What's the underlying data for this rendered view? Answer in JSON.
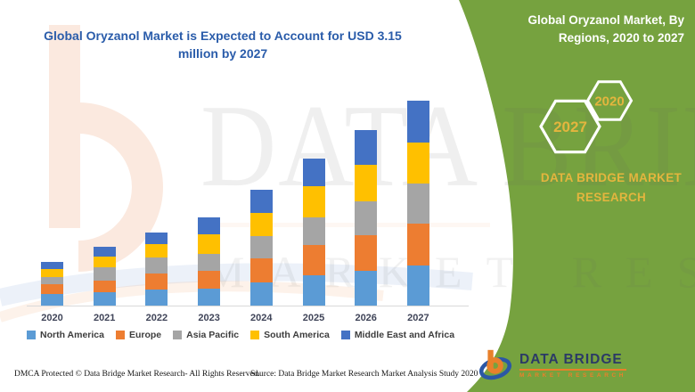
{
  "colors": {
    "accent_green": "#76a23f",
    "title_blue": "#2a5caa",
    "gold": "#e4b53e",
    "header_text_white": "#ffffff",
    "axis_label": "#3f4458",
    "legend_text": "#3d3d3d",
    "axis_line": "#d9d9d9",
    "logo_navy": "#2b3a66",
    "logo_orange": "#e8802b",
    "logo_blue": "#2b57a5"
  },
  "header": {
    "title": "Global Oryzanol Market is Expected to Account for USD 3.15 million by 2027",
    "right_title": "Global Oryzanol Market, By Regions, 2020 to 2027"
  },
  "side_panel": {
    "hexagons": [
      {
        "label": "2027"
      },
      {
        "label": "2020"
      }
    ],
    "brand_text": "DATA BRIDGE MARKET RESEARCH"
  },
  "watermark": {
    "line1": "DATA BRIDGE",
    "line2": "MARKET RESEARCH"
  },
  "footer": {
    "dmca": "DMCA Protected © Data Bridge Market Research- All Rights Reserved.",
    "source": "Source: Data Bridge Market Research Market Analysis Study 2020",
    "logo_name": "DATA BRIDGE",
    "logo_subtext": "MARKET RESEARCH"
  },
  "chart_data": {
    "type": "bar",
    "stacked": true,
    "title": "Global Oryzanol Market, By Regions, 2020 to 2027",
    "unit": "USD million",
    "categories": [
      "2020",
      "2021",
      "2022",
      "2023",
      "2024",
      "2025",
      "2026",
      "2027"
    ],
    "series": [
      {
        "name": "North America",
        "color": "#5b9bd5",
        "values": [
          0.18,
          0.21,
          0.25,
          0.26,
          0.35,
          0.47,
          0.54,
          0.62
        ]
      },
      {
        "name": "Europe",
        "color": "#ed7d31",
        "values": [
          0.15,
          0.18,
          0.24,
          0.28,
          0.37,
          0.46,
          0.54,
          0.64
        ]
      },
      {
        "name": "Asia Pacific",
        "color": "#a5a5a5",
        "values": [
          0.11,
          0.2,
          0.25,
          0.25,
          0.35,
          0.43,
          0.52,
          0.62
        ]
      },
      {
        "name": "South America",
        "color": "#ffc000",
        "values": [
          0.12,
          0.17,
          0.2,
          0.3,
          0.35,
          0.47,
          0.57,
          0.63
        ]
      },
      {
        "name": "Middle East and Africa",
        "color": "#4472c4",
        "values": [
          0.11,
          0.15,
          0.19,
          0.26,
          0.36,
          0.43,
          0.53,
          0.64
        ]
      }
    ],
    "totals": [
      0.67,
      0.91,
      1.13,
      1.35,
      1.78,
      2.26,
      2.7,
      3.15
    ],
    "ylim": [
      0,
      3.3
    ],
    "y_axis_visible": false,
    "gridlines": false,
    "legend_position": "bottom",
    "stack_order_bottom_to_top": [
      "North America",
      "Europe",
      "Asia Pacific",
      "South America",
      "Middle East and Africa"
    ]
  }
}
